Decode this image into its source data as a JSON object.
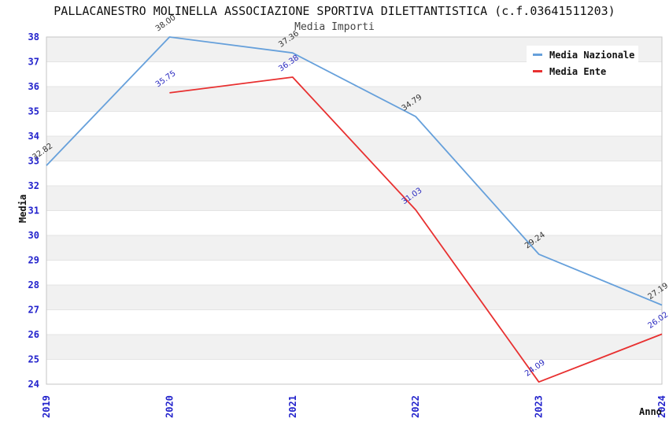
{
  "title": "PALLACANESTRO MOLINELLA ASSOCIAZIONE SPORTIVA DILETTANTISTICA (c.f.03641511203)",
  "subtitle": "Media Importi",
  "axes": {
    "xlabel": "Anno",
    "ylabel": "Media",
    "tick_color": "#2323cc"
  },
  "legend": {
    "position": "top-right",
    "items": [
      {
        "label": "Media Nazionale",
        "color": "#66a0db"
      },
      {
        "label": "Media Ente",
        "color": "#e83030"
      }
    ]
  },
  "chart_data": {
    "type": "line",
    "x": [
      2019,
      2020,
      2021,
      2022,
      2023,
      2024
    ],
    "series": [
      {
        "name": "Media Nazionale",
        "color": "#66a0db",
        "label_color": "#333333",
        "values": [
          32.82,
          38.0,
          37.36,
          34.79,
          29.24,
          27.19
        ]
      },
      {
        "name": "Media Ente",
        "color": "#e83030",
        "label_color": "#2a2ac0",
        "values": [
          null,
          35.75,
          36.38,
          31.03,
          24.09,
          26.02
        ]
      }
    ],
    "ylim": [
      24,
      38
    ],
    "y_tick_step": 1,
    "grid": "horizontal-bands",
    "band_colors": [
      "#f1f1f1",
      "#ffffff"
    ],
    "gridline_color": "#e4e4e4",
    "border_color": "#c6c6c6",
    "data_label_rotation": -35
  }
}
